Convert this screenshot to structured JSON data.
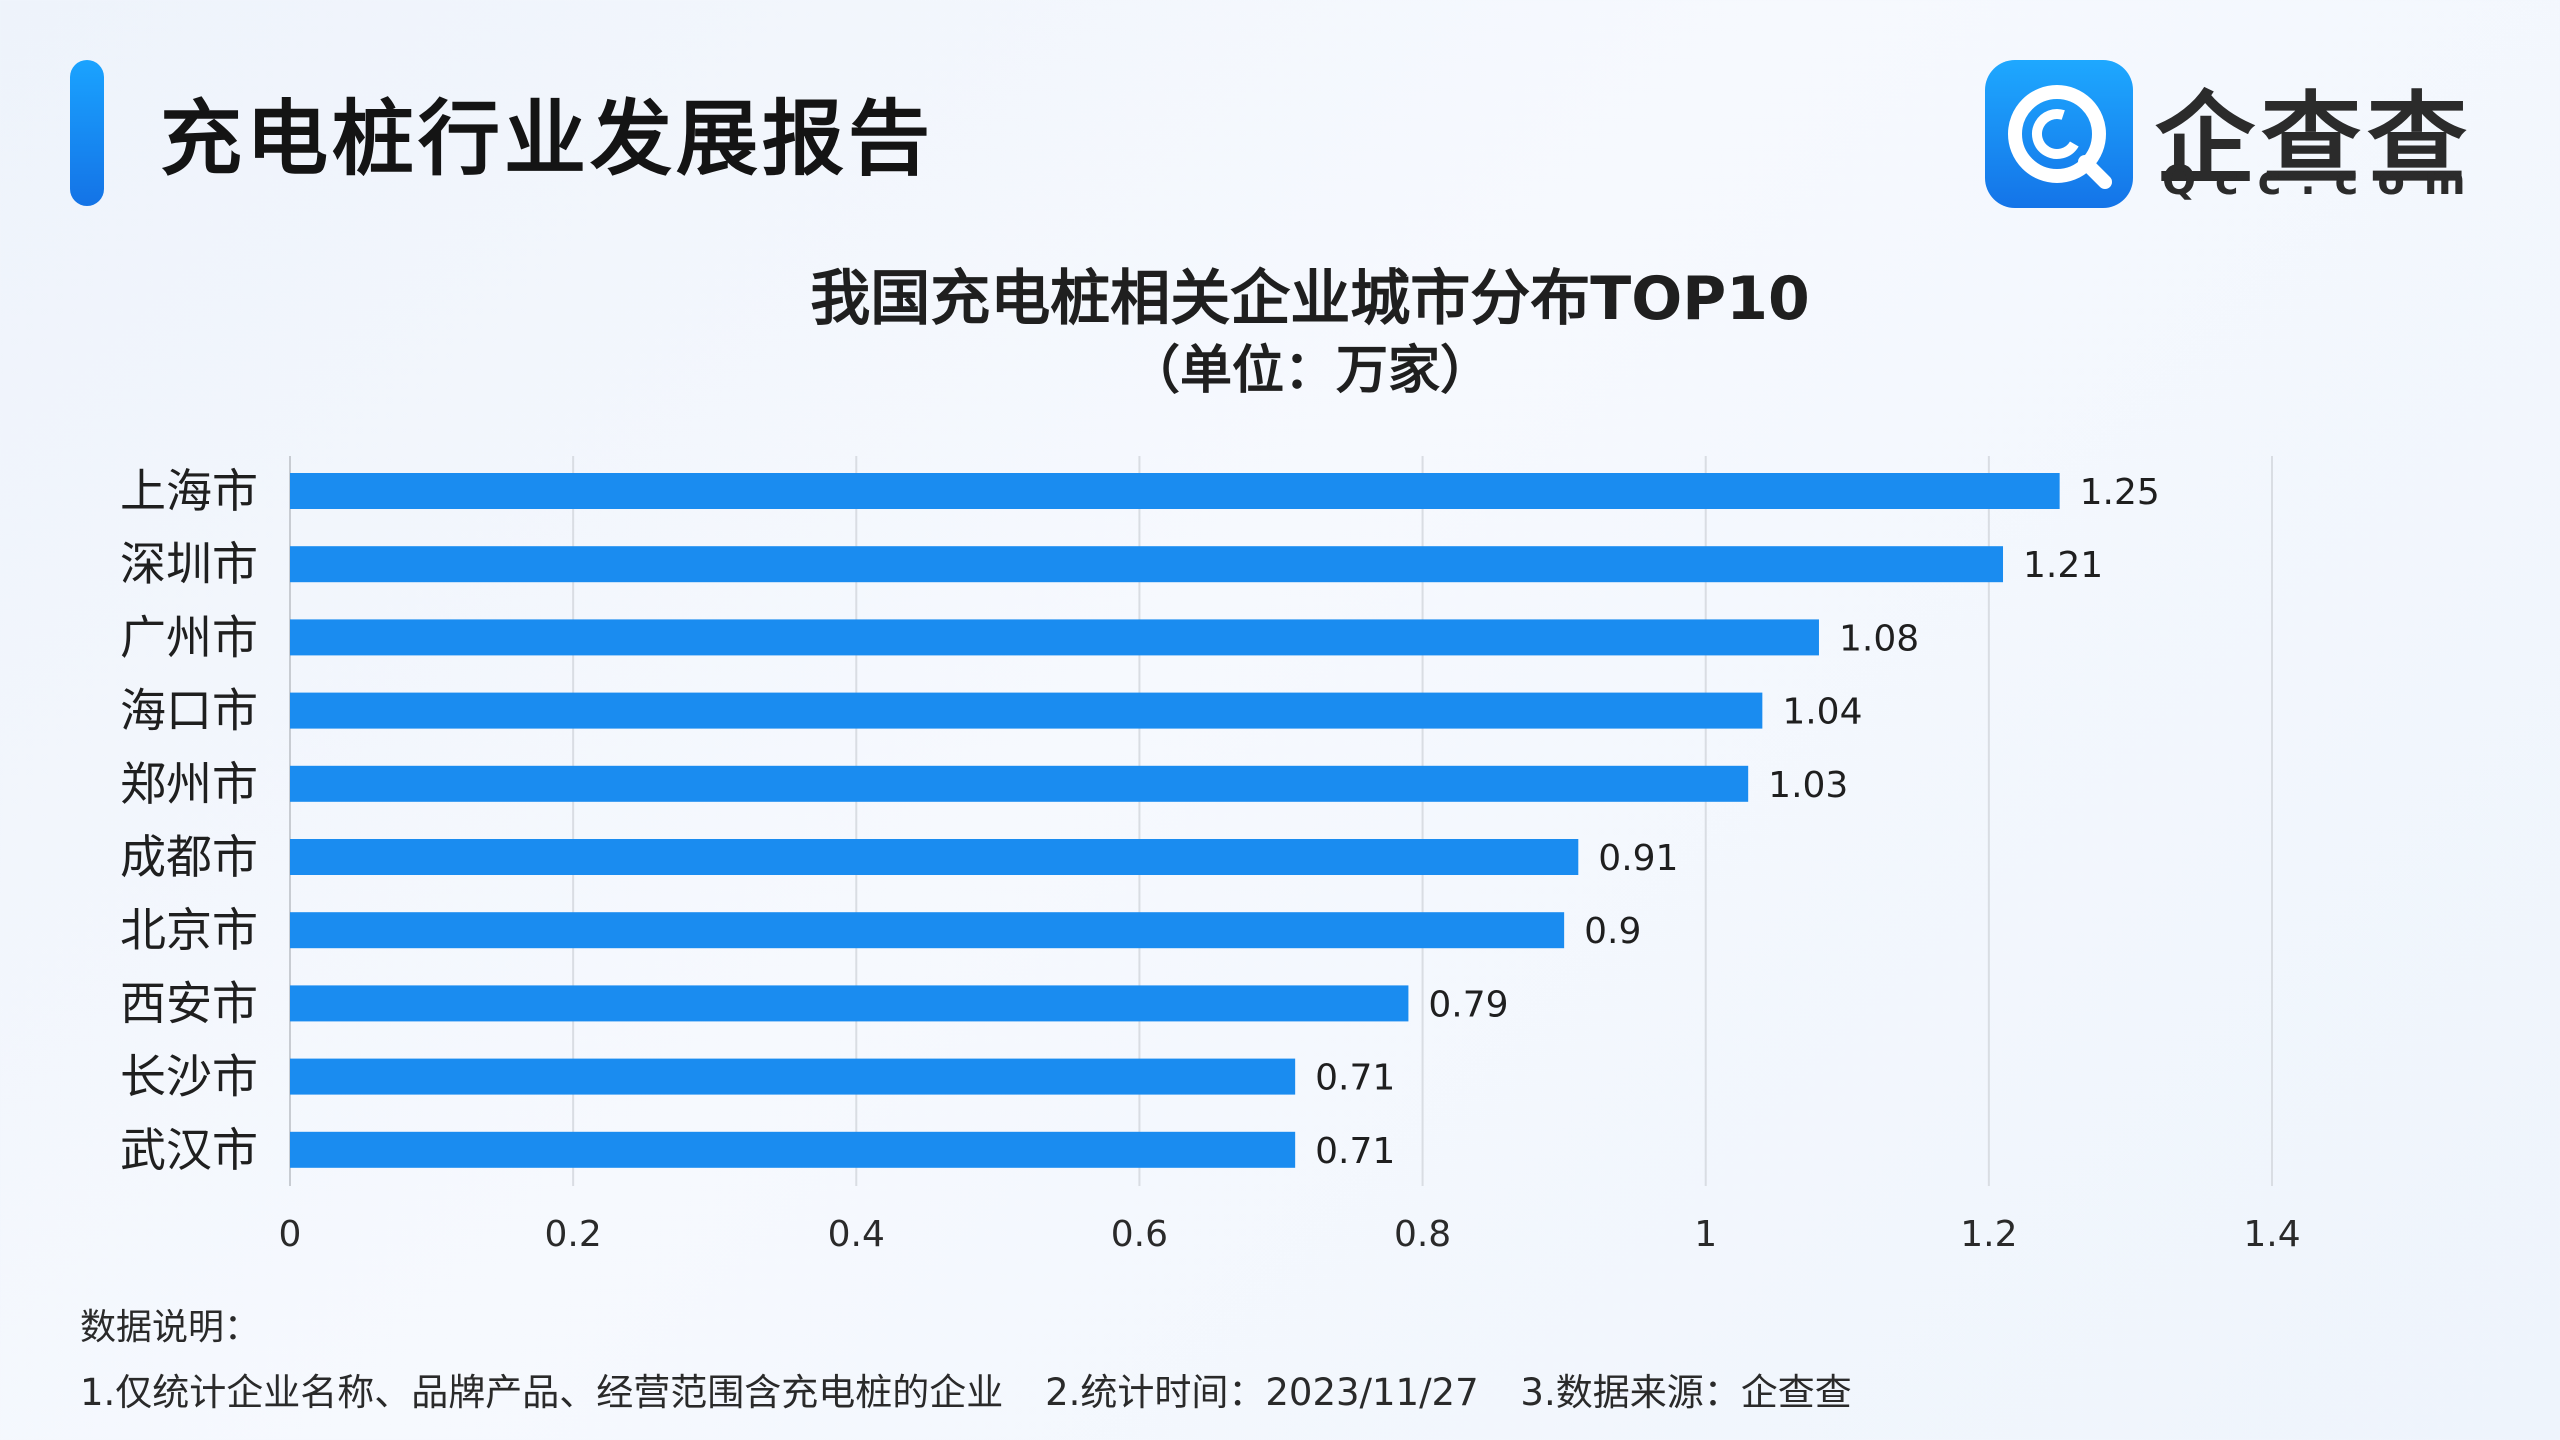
{
  "header": {
    "report_title": "充电桩行业发展报告",
    "brand_name": "企查查",
    "brand_domain": "Qcc.com",
    "brand_icon": "qcc-logo-icon",
    "accent_color": "#1a8cf0"
  },
  "chart_data": {
    "type": "bar",
    "orientation": "horizontal",
    "title": "我国充电桩相关企业城市分布TOP10",
    "subtitle": "（单位：万家）",
    "categories": [
      "上海市",
      "深圳市",
      "广州市",
      "海口市",
      "郑州市",
      "成都市",
      "北京市",
      "西安市",
      "长沙市",
      "武汉市"
    ],
    "values": [
      1.25,
      1.21,
      1.08,
      1.04,
      1.03,
      0.91,
      0.9,
      0.79,
      0.71,
      0.71
    ],
    "value_labels": [
      "1.25",
      "1.21",
      "1.08",
      "1.04",
      "1.03",
      "0.91",
      "0.9",
      "0.79",
      "0.71",
      "0.71"
    ],
    "xlim": [
      0,
      1.4
    ],
    "xticks": [
      "0",
      "0.2",
      "0.4",
      "0.6",
      "0.8",
      "1",
      "1.2",
      "1.4"
    ],
    "grid": true,
    "bar_color": "#1a8cf0"
  },
  "notes": {
    "title": "数据说明：",
    "items": [
      "1.仅统计企业名称、品牌产品、经营范围含充电桩的企业",
      "2.统计时间：2023/11/27",
      "3.数据来源：企查查"
    ]
  }
}
